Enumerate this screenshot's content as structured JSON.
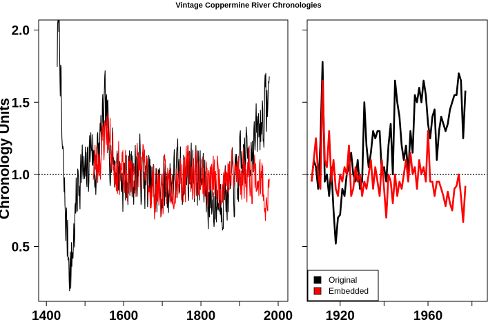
{
  "chart_data": [
    {
      "type": "line",
      "panel": "left",
      "title": "Vintage Coppermine River Chronologies",
      "xlabel": "",
      "ylabel": "Chronology Units",
      "xlim": [
        1380,
        2025
      ],
      "ylim": [
        0.12,
        2.07
      ],
      "xticks": [
        1400,
        1600,
        1800,
        2000
      ],
      "xtick_labels": [
        "1400",
        "1600",
        "1800",
        "2000"
      ],
      "xminor": [
        1500,
        1700,
        1900
      ],
      "yticks": [
        0.5,
        1.0,
        1.5,
        2.0
      ],
      "ytick_labels": [
        "0.5",
        "1.0",
        "1.5",
        "2.0"
      ],
      "reference_line": 1.0,
      "series": [
        {
          "name": "Original",
          "color": "#000000",
          "start": 1428,
          "end": 1977,
          "anchors": [
            [
              1428,
              1.85
            ],
            [
              1432,
              2.1
            ],
            [
              1436,
              1.78
            ],
            [
              1440,
              1.25
            ],
            [
              1446,
              0.88
            ],
            [
              1452,
              0.62
            ],
            [
              1458,
              0.45
            ],
            [
              1464,
              0.32
            ],
            [
              1470,
              0.55
            ],
            [
              1476,
              0.75
            ],
            [
              1482,
              0.95
            ],
            [
              1490,
              1.05
            ],
            [
              1500,
              0.95
            ],
            [
              1510,
              1.1
            ],
            [
              1518,
              1.25
            ],
            [
              1525,
              1.0
            ],
            [
              1535,
              1.15
            ],
            [
              1545,
              1.3
            ],
            [
              1552,
              1.45
            ],
            [
              1558,
              1.35
            ],
            [
              1565,
              1.2
            ],
            [
              1575,
              1.1
            ],
            [
              1590,
              1.0
            ],
            [
              1600,
              0.95
            ],
            [
              1620,
              1.0
            ],
            [
              1640,
              1.05
            ],
            [
              1660,
              0.95
            ],
            [
              1680,
              0.88
            ],
            [
              1700,
              0.9
            ],
            [
              1720,
              0.95
            ],
            [
              1740,
              1.0
            ],
            [
              1760,
              1.0
            ],
            [
              1775,
              1.05
            ],
            [
              1790,
              1.0
            ],
            [
              1805,
              0.95
            ],
            [
              1820,
              0.85
            ],
            [
              1835,
              0.8
            ],
            [
              1850,
              0.85
            ],
            [
              1870,
              0.9
            ],
            [
              1890,
              0.95
            ],
            [
              1905,
              1.05
            ],
            [
              1920,
              1.15
            ],
            [
              1935,
              1.2
            ],
            [
              1950,
              1.3
            ],
            [
              1960,
              1.4
            ],
            [
              1970,
              1.5
            ],
            [
              1977,
              1.55
            ]
          ],
          "amplitude": 0.2,
          "seed": 7
        },
        {
          "name": "Embedded",
          "color": "#ff0000",
          "start": 1521,
          "end": 1977,
          "anchors": [
            [
              1521,
              1.05
            ],
            [
              1535,
              1.1
            ],
            [
              1545,
              1.2
            ],
            [
              1555,
              1.35
            ],
            [
              1562,
              1.25
            ],
            [
              1575,
              1.1
            ],
            [
              1590,
              1.05
            ],
            [
              1600,
              0.95
            ],
            [
              1620,
              1.0
            ],
            [
              1640,
              1.05
            ],
            [
              1660,
              0.98
            ],
            [
              1680,
              0.88
            ],
            [
              1700,
              0.9
            ],
            [
              1720,
              0.95
            ],
            [
              1740,
              1.0
            ],
            [
              1760,
              1.0
            ],
            [
              1780,
              1.02
            ],
            [
              1800,
              1.0
            ],
            [
              1820,
              0.95
            ],
            [
              1840,
              0.95
            ],
            [
              1860,
              0.98
            ],
            [
              1880,
              1.0
            ],
            [
              1900,
              1.0
            ],
            [
              1920,
              1.02
            ],
            [
              1940,
              1.0
            ],
            [
              1960,
              0.92
            ],
            [
              1977,
              0.85
            ]
          ],
          "amplitude": 0.17,
          "seed": 23
        }
      ]
    },
    {
      "type": "line",
      "panel": "right",
      "xlabel": "",
      "ylabel": "",
      "xlim": [
        1905,
        1987
      ],
      "ylim": [
        0.12,
        2.07
      ],
      "xticks": [
        1920,
        1960
      ],
      "xtick_labels": [
        "1920",
        "1960"
      ],
      "xminor": [
        1940,
        1980
      ],
      "yticks": [
        0.5,
        1.0,
        1.5,
        2.0
      ],
      "reference_line": 1.0,
      "legend": {
        "position": "bottom-left",
        "entries": [
          {
            "label": "Original",
            "color": "#000000"
          },
          {
            "label": "Embedded",
            "color": "#ff0000"
          }
        ]
      },
      "series": [
        {
          "name": "Original",
          "color": "#000000",
          "x": [
            1907,
            1908,
            1909,
            1910,
            1911,
            1912,
            1913,
            1914,
            1915,
            1916,
            1917,
            1918,
            1919,
            1920,
            1921,
            1922,
            1923,
            1924,
            1925,
            1926,
            1927,
            1928,
            1929,
            1930,
            1931,
            1932,
            1933,
            1934,
            1935,
            1936,
            1937,
            1938,
            1939,
            1940,
            1941,
            1942,
            1943,
            1944,
            1945,
            1946,
            1947,
            1948,
            1949,
            1950,
            1951,
            1952,
            1953,
            1954,
            1955,
            1956,
            1957,
            1958,
            1959,
            1960,
            1961,
            1962,
            1963,
            1964,
            1965,
            1966,
            1967,
            1968,
            1969,
            1970,
            1971,
            1972,
            1973,
            1974,
            1975,
            1976,
            1977
          ],
          "y": [
            0.95,
            1.1,
            1.05,
            0.9,
            1.2,
            1.78,
            0.95,
            1.0,
            0.85,
            1.05,
            0.75,
            0.52,
            0.7,
            0.72,
            0.9,
            0.85,
            1.0,
            1.05,
            1.15,
            1.0,
            0.95,
            1.1,
            0.9,
            0.95,
            1.5,
            1.2,
            1.05,
            1.15,
            1.3,
            1.25,
            1.3,
            1.3,
            1.0,
            1.05,
            0.95,
            1.2,
            1.35,
            1.0,
            1.65,
            1.5,
            1.4,
            1.2,
            1.1,
            1.2,
            1.0,
            1.3,
            1.15,
            1.55,
            1.5,
            1.6,
            1.5,
            1.65,
            1.55,
            1.35,
            1.25,
            1.4,
            1.45,
            1.1,
            1.3,
            1.4,
            1.35,
            1.3,
            1.35,
            1.45,
            1.5,
            1.55,
            1.55,
            1.7,
            1.65,
            1.25,
            1.58
          ]
        },
        {
          "name": "Embedded",
          "color": "#ff0000",
          "x": [
            1907,
            1908,
            1909,
            1910,
            1911,
            1912,
            1913,
            1914,
            1915,
            1916,
            1917,
            1918,
            1919,
            1920,
            1921,
            1922,
            1923,
            1924,
            1925,
            1926,
            1927,
            1928,
            1929,
            1930,
            1931,
            1932,
            1933,
            1934,
            1935,
            1936,
            1937,
            1938,
            1939,
            1940,
            1941,
            1942,
            1943,
            1944,
            1945,
            1946,
            1947,
            1948,
            1949,
            1950,
            1951,
            1952,
            1953,
            1954,
            1955,
            1956,
            1957,
            1958,
            1959,
            1960,
            1961,
            1962,
            1963,
            1964,
            1965,
            1966,
            1967,
            1968,
            1969,
            1970,
            1971,
            1972,
            1973,
            1974,
            1975,
            1976,
            1977
          ],
          "y": [
            0.95,
            1.1,
            1.25,
            1.0,
            0.9,
            1.65,
            1.1,
            1.05,
            1.3,
            0.95,
            1.1,
            0.9,
            0.85,
            1.0,
            0.95,
            1.05,
            1.0,
            1.2,
            0.85,
            0.9,
            1.05,
            0.95,
            1.0,
            0.85,
            0.95,
            0.9,
            1.0,
            1.1,
            0.9,
            1.05,
            0.95,
            0.85,
            1.1,
            0.9,
            0.7,
            1.0,
            0.95,
            0.8,
            1.0,
            0.85,
            0.95,
            0.9,
            1.0,
            1.1,
            0.95,
            1.15,
            1.0,
            1.05,
            0.9,
            1.1,
            1.0,
            1.05,
            0.95,
            1.3,
            0.95,
            0.95,
            0.85,
            0.95,
            0.95,
            0.9,
            0.85,
            0.78,
            0.88,
            0.8,
            0.75,
            0.9,
            0.92,
            1.0,
            0.85,
            0.67,
            0.92
          ]
        }
      ]
    }
  ]
}
